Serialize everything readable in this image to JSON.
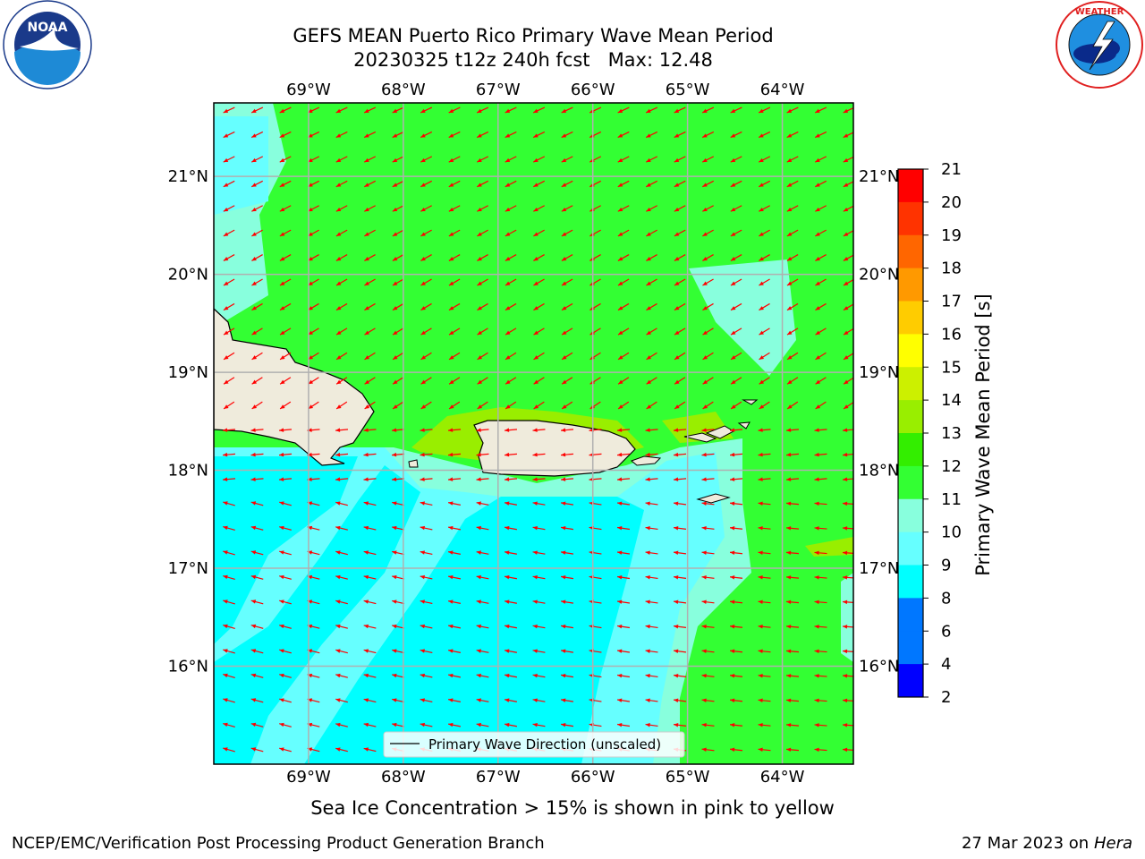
{
  "header": {
    "title_line1": "GEFS MEAN Puerto Rico Primary Wave Mean Period",
    "title_line2": "20230325 t12z 240h fcst   Max: 12.48"
  },
  "map": {
    "lon_ticks": [
      "69°W",
      "68°W",
      "67°W",
      "66°W",
      "65°W",
      "64°W"
    ],
    "lat_ticks": [
      "21°N",
      "20°N",
      "19°N",
      "18°N",
      "17°N",
      "16°N"
    ],
    "lon_range": [
      -70.0,
      -63.25
    ],
    "lat_range": [
      15.0,
      21.75
    ],
    "arrow_color": "#ff0000",
    "land_color": "#efebdc",
    "legend_label": "Primary Wave Direction (unscaled)"
  },
  "colorbar": {
    "label": "Primary Wave Mean Period [s]",
    "ticks": [
      "21",
      "20",
      "19",
      "18",
      "17",
      "16",
      "15",
      "14",
      "13",
      "12",
      "11",
      "10",
      "9",
      "8",
      "6",
      "4",
      "2"
    ],
    "colors": [
      "#ff0000",
      "#ff3300",
      "#ff6600",
      "#ff9900",
      "#ffcc00",
      "#ffff00",
      "#ccf000",
      "#99ee00",
      "#33ee00",
      "#33ff33",
      "#88ffdd",
      "#66ffff",
      "#00ffff",
      "#0077ff",
      "#0000ff"
    ]
  },
  "footnote": "Sea Ice Concentration > 15% is shown in pink to yellow",
  "footer": {
    "left": "NCEP/EMC/Verification Post Processing Product Generation Branch",
    "right_date": "27 Mar 2023 on",
    "right_machine": "Hera"
  }
}
